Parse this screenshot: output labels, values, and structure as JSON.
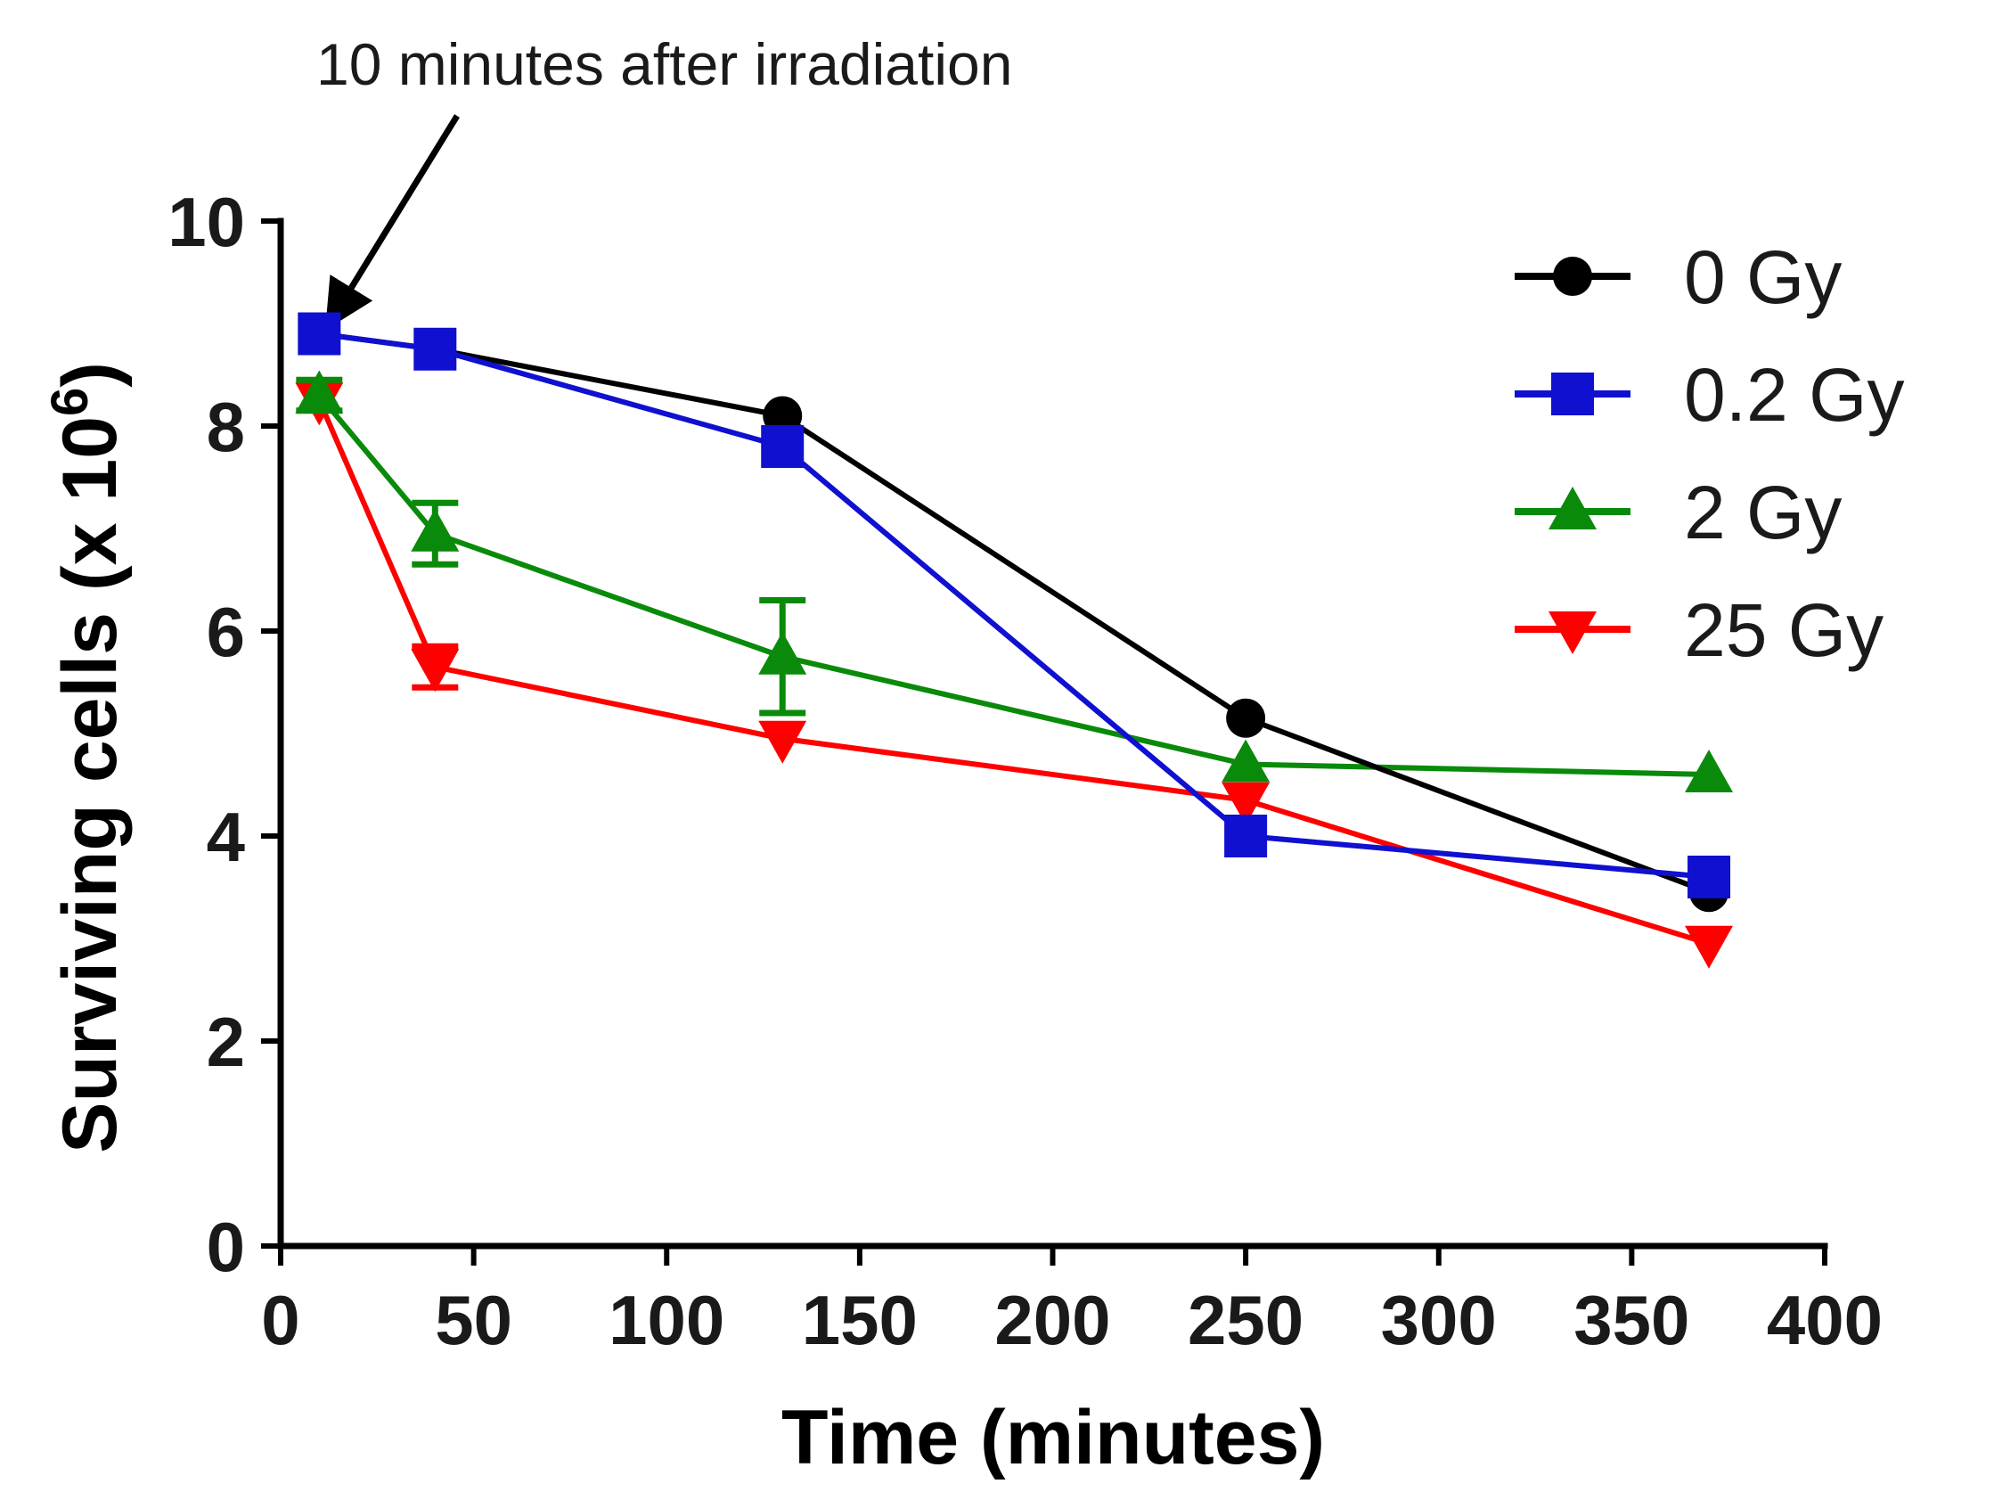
{
  "chart_data": {
    "type": "line",
    "xlabel": "Time (minutes)",
    "ylabel": "Surviving cells (x 10",
    "ylabel_sup": "6",
    "ylabel_close": ")",
    "xlim": [
      0,
      400
    ],
    "ylim": [
      0,
      10
    ],
    "xticks": [
      0,
      50,
      100,
      150,
      200,
      250,
      300,
      350,
      400
    ],
    "yticks": [
      0,
      2,
      4,
      6,
      8,
      10
    ],
    "x": [
      10,
      40,
      130,
      250,
      370
    ],
    "annotation": {
      "text": "10 minutes after irradiation",
      "points_to": {
        "x": 10,
        "y": 8.9
      }
    },
    "legend_position": "top-right",
    "series": [
      {
        "name": "0 Gy",
        "color": "#000000",
        "marker": "circle",
        "values": [
          8.9,
          8.75,
          8.1,
          5.15,
          3.45
        ],
        "errors": [
          0,
          0,
          0,
          0,
          0
        ]
      },
      {
        "name": "0.2 Gy",
        "color": "#1010d0",
        "marker": "square",
        "values": [
          8.9,
          8.75,
          7.8,
          4.0,
          3.6
        ],
        "errors": [
          0,
          0,
          0,
          0,
          0
        ]
      },
      {
        "name": "2 Gy",
        "color": "#0a8a0a",
        "marker": "triangle-up",
        "values": [
          8.3,
          6.95,
          5.75,
          4.7,
          4.6
        ],
        "errors": [
          0.15,
          0.3,
          0.55,
          0,
          0
        ]
      },
      {
        "name": "25 Gy",
        "color": "#ff0000",
        "marker": "triangle-down",
        "values": [
          8.25,
          5.65,
          4.95,
          4.35,
          2.95
        ],
        "errors": [
          0,
          0.2,
          0,
          0,
          0
        ]
      }
    ]
  }
}
